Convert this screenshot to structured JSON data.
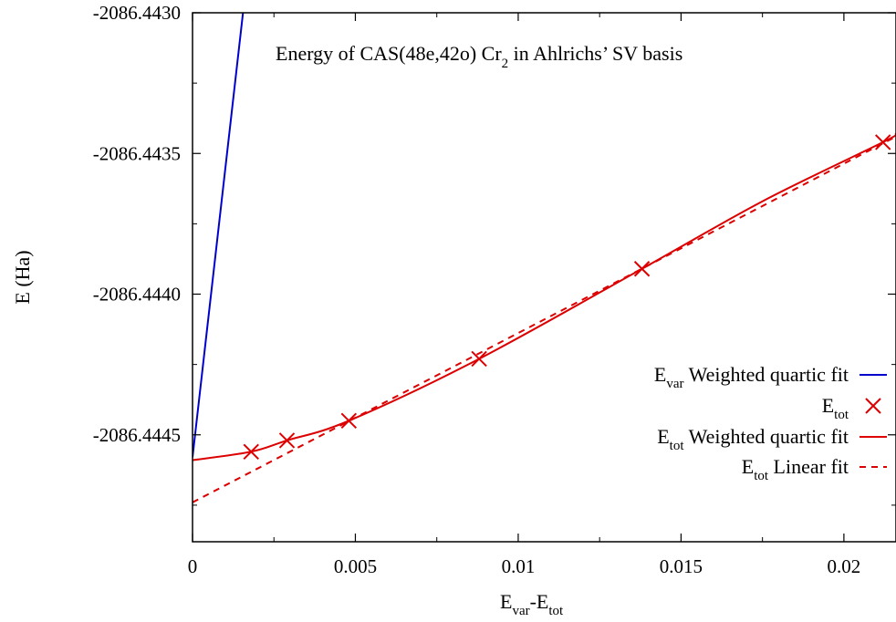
{
  "chart_data": {
    "type": "line",
    "title": "Energy of CAS(48e,42o) Cr",
    "title_sub": "2",
    "title_rest": " in Ahlrichs’ SV basis",
    "xlabel": {
      "base1": "E",
      "sub1": "var",
      "mid": "-E",
      "sub2": "tot"
    },
    "ylabel": "E (Ha)",
    "xlim": [
      0,
      0.0216
    ],
    "ylim": [
      -2086.44488,
      -2086.443
    ],
    "x_ticks": [
      0,
      0.005,
      0.01,
      0.015,
      0.02
    ],
    "x_tick_labels": [
      "0",
      "0.005",
      "0.01",
      "0.015",
      "0.02"
    ],
    "y_ticks": [
      -2086.443,
      -2086.4435,
      -2086.444,
      -2086.4445
    ],
    "y_tick_labels": [
      "-2086.4430",
      "-2086.4435",
      "-2086.4440",
      "-2086.4445"
    ],
    "grid": false,
    "legend_position": "right",
    "series": [
      {
        "name_base": "E",
        "name_sub": "var",
        "name_rest": " Weighted quartic fit",
        "kind": "line",
        "dash": "solid",
        "color": "#0000cc",
        "x": [
          0,
          0.00155
        ],
        "y": [
          -2086.44458,
          -2086.443
        ]
      },
      {
        "name_base": "E",
        "name_sub": "tot",
        "name_rest": "",
        "kind": "points",
        "marker": "x",
        "color": "#dd0000",
        "x": [
          0.0018,
          0.0029,
          0.0048,
          0.0088,
          0.0138,
          0.0212
        ],
        "y": [
          -2086.44456,
          -2086.44452,
          -2086.44445,
          -2086.44423,
          -2086.44391,
          -2086.44346
        ]
      },
      {
        "name_base": "E",
        "name_sub": "tot",
        "name_rest": " Weighted quartic fit",
        "kind": "line",
        "dash": "solid",
        "color": "#dd0000",
        "x": [
          0,
          0.0018,
          0.0029,
          0.0048,
          0.0088,
          0.0138,
          0.0175,
          0.0212,
          0.0216
        ],
        "y": [
          -2086.44459,
          -2086.44456,
          -2086.44452,
          -2086.44445,
          -2086.44423,
          -2086.44391,
          -2086.44367,
          -2086.44346,
          -2086.44343
        ]
      },
      {
        "name_base": "E",
        "name_sub": "tot",
        "name_rest": " Linear fit",
        "kind": "line",
        "dash": "dashed",
        "color": "#dd0000",
        "x": [
          0,
          0.0216
        ],
        "y": [
          -2086.44474,
          -2086.44344
        ]
      }
    ]
  }
}
